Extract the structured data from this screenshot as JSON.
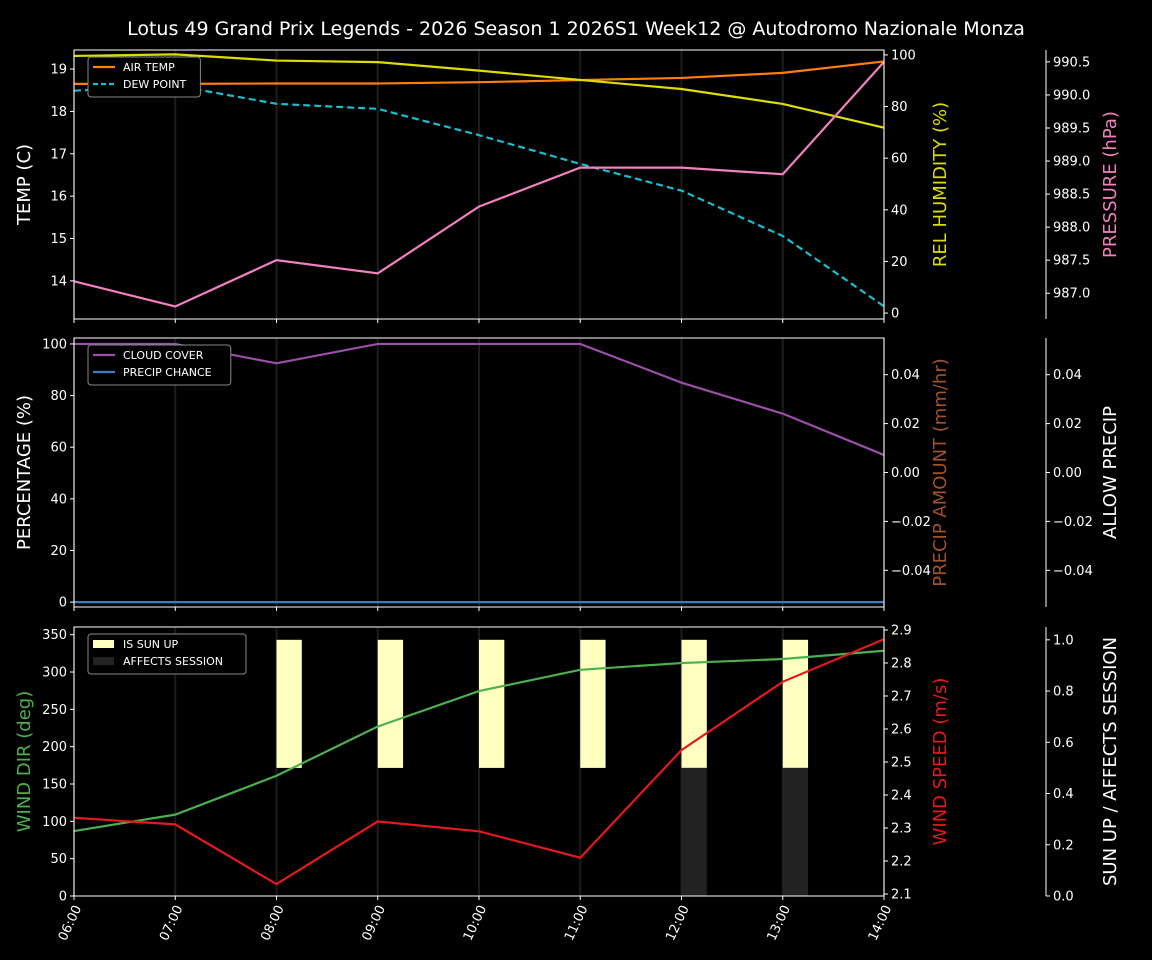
{
  "title": "Lotus 49 Grand Prix Legends - 2026 Season 1 2026S1 Week12 @ Autodromo Nazionale Monza",
  "chart_data": [
    {
      "type": "line",
      "x": [
        "06:00",
        "07:00",
        "08:00",
        "09:00",
        "10:00",
        "11:00",
        "12:00",
        "13:00",
        "14:00"
      ],
      "axes": {
        "left": {
          "label": "TEMP (C)",
          "color": "#ffffff",
          "ylim": [
            13.1,
            19.45
          ],
          "ticks": [
            "14",
            "15",
            "16",
            "17",
            "18",
            "19"
          ]
        },
        "right": {
          "label": "REL HUMIDITY (%)",
          "color": "#dddd00",
          "ylim": [
            -2.3,
            101.9
          ],
          "ticks": [
            "0",
            "20",
            "40",
            "60",
            "80",
            "100"
          ]
        },
        "right2": {
          "label": "PRESSURE (hPa)",
          "color": "#f081be",
          "ylim": [
            986.61,
            990.68
          ],
          "ticks": [
            "987.0",
            "987.5",
            "988.0",
            "988.5",
            "989.0",
            "989.5",
            "990.0",
            "990.5"
          ]
        }
      },
      "series": [
        {
          "name": "AIR TEMP",
          "axis": "left",
          "color": "#ff7f0e",
          "dash": false,
          "legend": true,
          "values": [
            18.65,
            18.65,
            18.66,
            18.66,
            18.69,
            18.74,
            18.79,
            18.91,
            19.18
          ]
        },
        {
          "name": "DEW POINT",
          "axis": "left",
          "color": "#17becf",
          "dash": true,
          "legend": true,
          "values": [
            18.49,
            18.61,
            18.18,
            18.06,
            17.44,
            16.76,
            16.13,
            15.06,
            13.4
          ]
        },
        {
          "axis": "right",
          "color": "#dddd00",
          "dash": false,
          "legend": false,
          "values": [
            99.6,
            100.2,
            97.8,
            97.2,
            93.9,
            90.3,
            86.8,
            81.0,
            71.8
          ]
        },
        {
          "axis": "right2",
          "color": "#f081be",
          "dash": false,
          "legend": false,
          "values": [
            987.18,
            986.8,
            987.5,
            987.3,
            988.31,
            988.9,
            988.9,
            988.8,
            990.5
          ]
        }
      ],
      "legend": "upper-left",
      "grid": "vertical"
    },
    {
      "type": "line",
      "x": [
        "06:00",
        "07:00",
        "08:00",
        "09:00",
        "10:00",
        "11:00",
        "12:00",
        "13:00",
        "14:00"
      ],
      "axes": {
        "left": {
          "label": "PERCENTAGE (%)",
          "color": "#ffffff",
          "ylim": [
            -1.9,
            102.3
          ],
          "ticks": [
            "0",
            "20",
            "40",
            "60",
            "80",
            "100"
          ]
        },
        "right": {
          "label": "PRECIP AMOUNT (mm/hr)",
          "color": "#a0522d",
          "ylim": [
            -0.055,
            0.055
          ],
          "ticks": [
            "−0.04",
            "−0.02",
            "0.00",
            "0.02",
            "0.04"
          ]
        },
        "right2": {
          "label": "ALLOW PRECIP",
          "color": "#ffffff",
          "ylim": [
            -0.055,
            0.055
          ],
          "ticks": [
            "−0.04",
            "−0.02",
            "0.00",
            "0.02",
            "0.04"
          ]
        }
      },
      "series": [
        {
          "name": "CLOUD COVER",
          "axis": "left",
          "color": "#9b4fa8",
          "dash": false,
          "legend": true,
          "values": [
            100,
            100,
            92.5,
            100,
            100,
            100,
            85,
            73,
            57
          ]
        },
        {
          "name": "PRECIP CHANCE",
          "axis": "left",
          "color": "#3a7ec0",
          "dash": false,
          "legend": true,
          "values": [
            0,
            0,
            0,
            0,
            0,
            0,
            0,
            0,
            0
          ]
        }
      ],
      "legend": "upper-left",
      "grid": "vertical"
    },
    {
      "type": "line",
      "x": [
        "06:00",
        "07:00",
        "08:00",
        "09:00",
        "10:00",
        "11:00",
        "12:00",
        "13:00",
        "14:00"
      ],
      "axes": {
        "left": {
          "label": "WIND DIR (deg)",
          "color": "#4caf50",
          "ylim": [
            0,
            360.3
          ],
          "ticks": [
            "0",
            "50",
            "100",
            "150",
            "200",
            "250",
            "300",
            "350"
          ]
        },
        "right": {
          "label": "WIND SPEED (m/s)",
          "color": "#e31a1c",
          "ylim": [
            2.094,
            2.909
          ],
          "ticks": [
            "2.1",
            "2.2",
            "2.3",
            "2.4",
            "2.5",
            "2.6",
            "2.7",
            "2.8",
            "2.9"
          ]
        },
        "right2": {
          "label": "SUN UP / AFFECTS SESSION",
          "color": "#ffffff",
          "ylim": [
            0,
            1.05
          ],
          "ticks": [
            "0.0",
            "0.2",
            "0.4",
            "0.6",
            "0.8",
            "1.0"
          ]
        }
      },
      "bars": [
        {
          "name": "IS SUN UP",
          "color": "#ffffc0",
          "values": [
            0,
            0,
            1,
            1,
            1,
            1,
            1,
            1,
            0
          ]
        },
        {
          "name": "AFFECTS SESSION",
          "color": "#222222",
          "values": [
            0,
            0,
            0,
            0,
            0,
            0,
            1,
            1,
            0
          ]
        }
      ],
      "series": [
        {
          "axis": "left",
          "color": "#4caf50",
          "dash": false,
          "legend": false,
          "values": [
            87,
            109,
            161,
            227,
            274.5,
            303,
            312,
            317.4,
            328.5
          ]
        },
        {
          "axis": "right",
          "color": "#e31a1c",
          "dash": false,
          "legend": false,
          "values": [
            2.331,
            2.311,
            2.13,
            2.32,
            2.29,
            2.21,
            2.536,
            2.743,
            2.872
          ]
        }
      ],
      "legend": "upper-left",
      "grid": "vertical"
    }
  ]
}
